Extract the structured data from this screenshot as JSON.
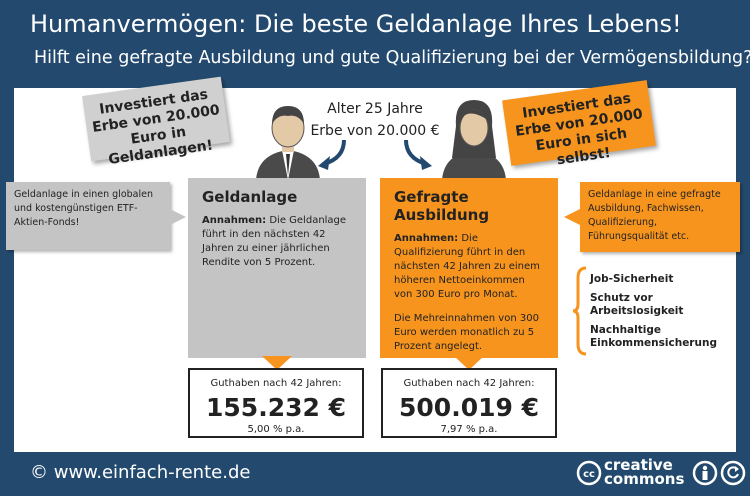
{
  "header": {
    "title": "Humanvermögen: Die beste Geldanlage Ihres Lebens!",
    "subtitle": "Hilft eine gefragte Ausbildung und gute Qualifizierung bei der Vermögensbildung?"
  },
  "bubbles": {
    "left": "Investiert das Erbe von 20.000 Euro in Geldanlagen!",
    "right": "Investiert das Erbe von 20.000 Euro in sich selbst!"
  },
  "center": {
    "line1": "Alter 25 Jahre",
    "line2": "Erbe von 20.000 €"
  },
  "left_card": {
    "title": "Geldanlage",
    "assumption_label": "Annahmen:",
    "assumption_text": " Die Geldanlage führt in den nächsten 42 Jahren zu einer jährlichen Rendite von 5 Prozent."
  },
  "right_card": {
    "title": "Gefragte Ausbildung",
    "assumption_label": "Annahmen:",
    "assumption_text": " Die Qualifizierung führt in den nächsten 42 Jahren zu einem höheren Nettoeinkommen von 300 Euro pro Monat.",
    "extra_text": "Die Mehreinnahmen von 300 Euro werden monatlich zu 5 Prozent angelegt."
  },
  "left_result": {
    "label": "Guthaben nach 42 Jahren:",
    "value": "155.232 €",
    "rate": "5,00 % p.a."
  },
  "right_result": {
    "label": "Guthaben nach 42 Jahren:",
    "value": "500.019 €",
    "rate": "7,97 % p.a."
  },
  "notes": {
    "left": "Geldanlage in einen globalen und kostengünstigen ETF-Aktien-Fonds!",
    "right": "Geldanlage in eine gefragte Ausbildung, Fachwissen, Qualifizierung, Führungsqualität etc."
  },
  "benefits": [
    "Job-Sicherheit",
    "Schutz vor Arbeitslosigkeit",
    "Nachhaltige Einkommensicherung"
  ],
  "footer": {
    "url": "© www.einfach-rente.de",
    "cc_line1": "creative",
    "cc_line2": "commons"
  },
  "colors": {
    "background": "#234a6e",
    "orange": "#f7941d",
    "grey": "#c4c4c4"
  }
}
